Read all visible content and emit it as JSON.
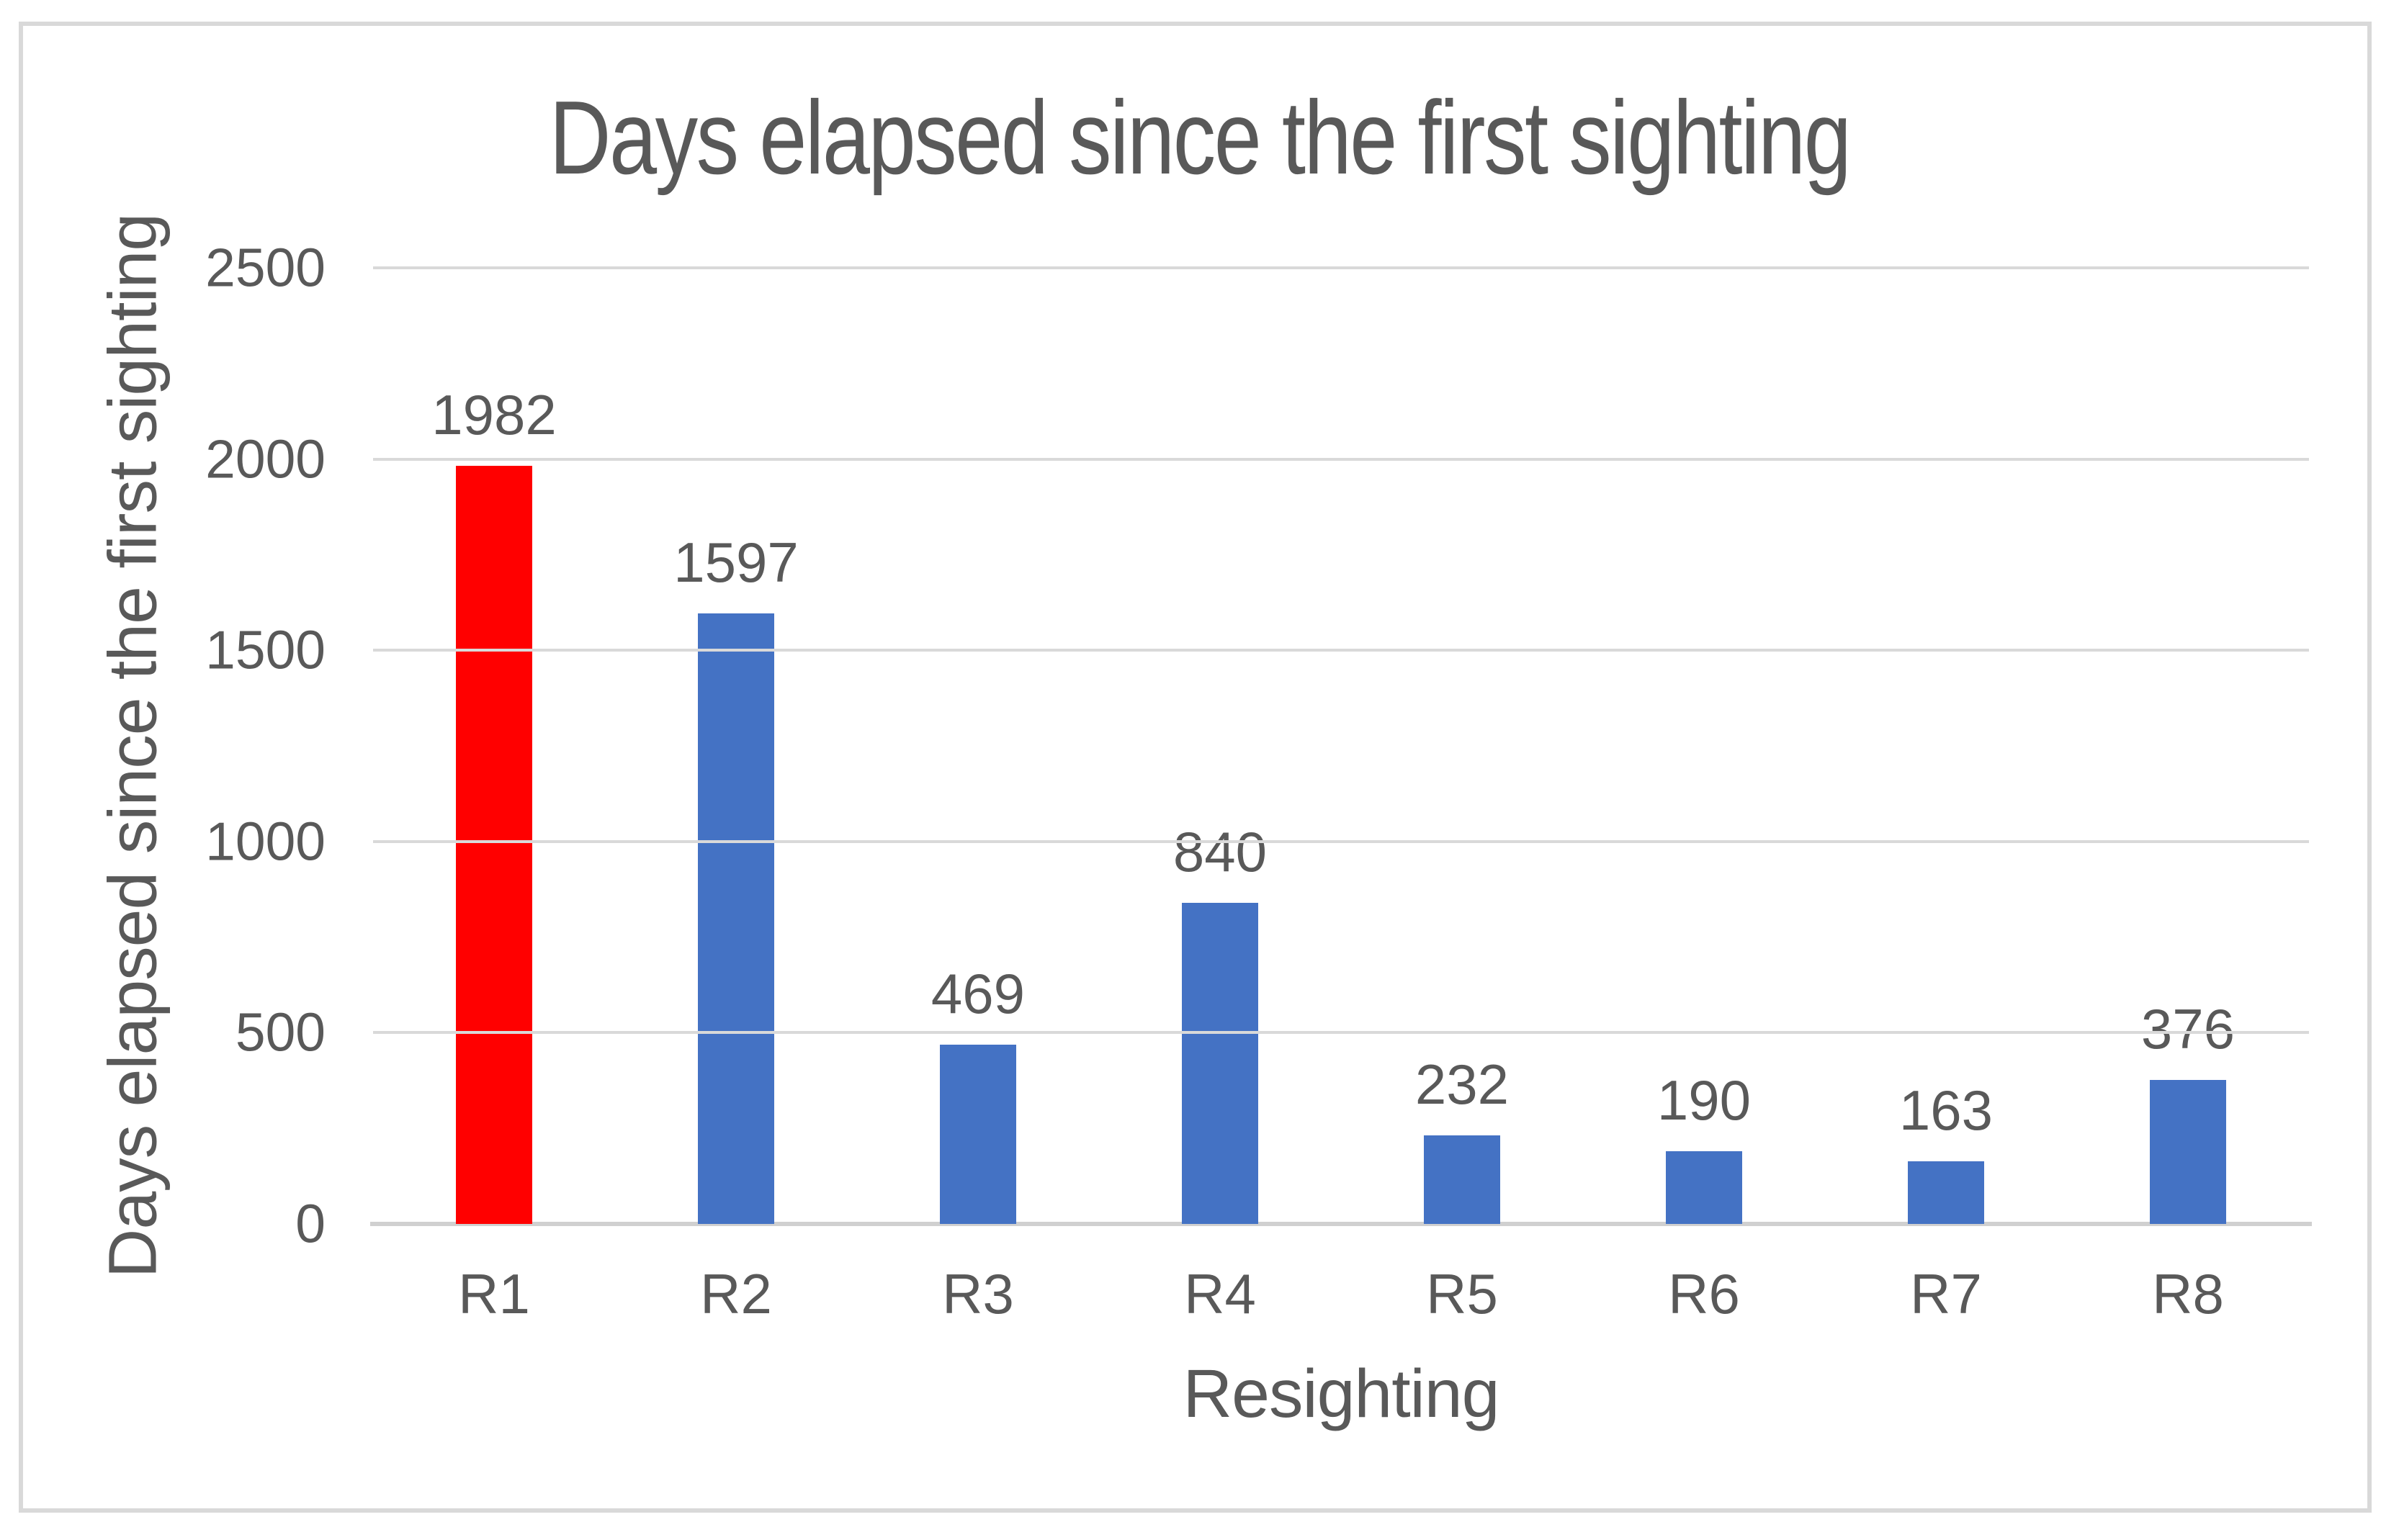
{
  "chart_data": {
    "type": "bar",
    "title": "Days elapsed since the first sighting",
    "xlabel": "Resighting",
    "ylabel": "Days elapsed since the first sighting",
    "categories": [
      "R1",
      "R2",
      "R3",
      "R4",
      "R5",
      "R6",
      "R7",
      "R8"
    ],
    "values": [
      1982,
      1597,
      469,
      840,
      232,
      190,
      163,
      376
    ],
    "ylim": [
      0,
      2500
    ],
    "yticks": [
      0,
      500,
      1000,
      1500,
      2000,
      2500
    ],
    "grid": true,
    "legend": "none",
    "data_labels_shown": true,
    "highlight_category": "R1"
  },
  "colors": {
    "bar_default": "#4472C4",
    "bar_highlight": "#FF0000",
    "text": "#595959",
    "gridline": "#D9D9D9",
    "axis_line": "#D0D0D0",
    "frame_border": "#D9D9D9",
    "background": "#FFFFFF"
  }
}
